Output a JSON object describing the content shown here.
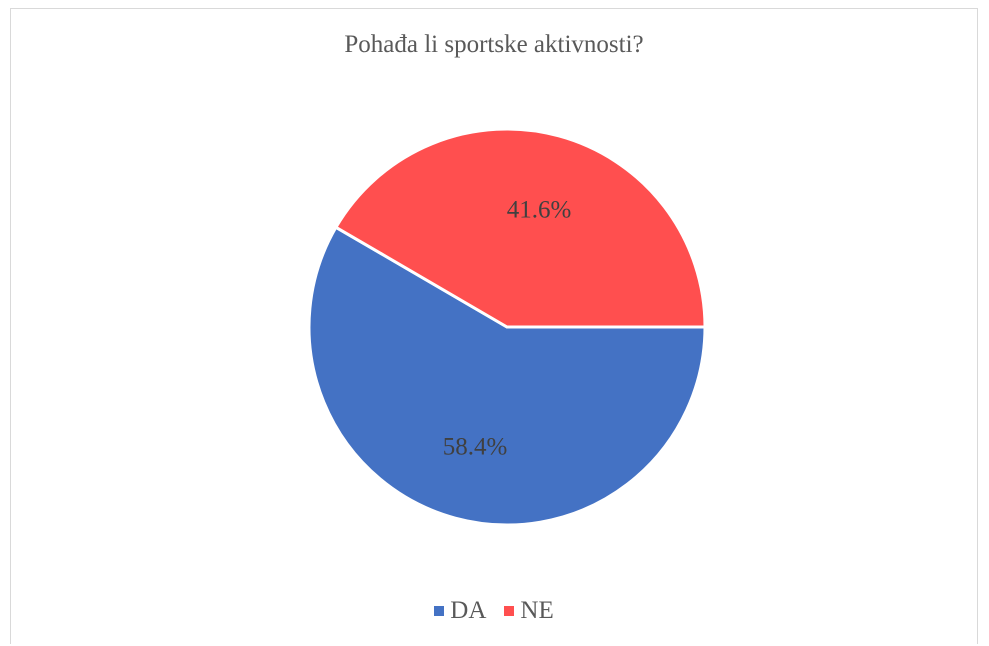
{
  "chart_data": {
    "type": "pie",
    "title": "Pohađa li sportske aktivnosti?",
    "categories": [
      "DA",
      "NE"
    ],
    "values": [
      58.4,
      41.6
    ],
    "labels": [
      "58.4%",
      "41.6%"
    ],
    "colors": [
      "#4472C4",
      "#FF4F4F"
    ],
    "legend_position": "bottom",
    "start_angle_deg": 90,
    "direction": "clockwise"
  }
}
